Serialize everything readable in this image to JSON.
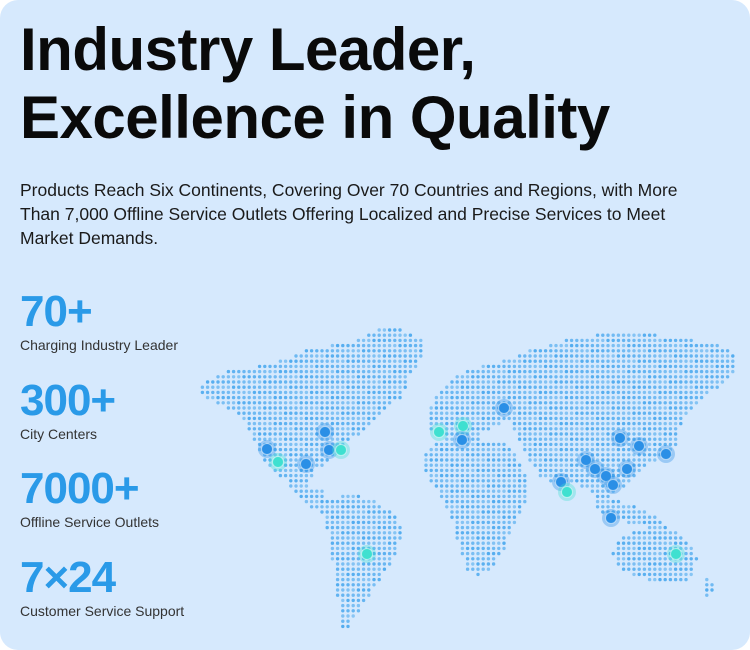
{
  "headline": {
    "line1": "Industry Leader,",
    "line2": "Excellence in Quality"
  },
  "description": "Products Reach Six Continents, Covering Over 70 Countries and Regions, with More Than 7,000 Offline Service Outlets Offering Localized and Precise Services to Meet Market Demands.",
  "stats": [
    {
      "value": "70+",
      "label": "Charging Industry Leader"
    },
    {
      "value": "300+",
      "label": "City Centers"
    },
    {
      "value": "7000+",
      "label": "Offline Service Outlets"
    },
    {
      "value": "7×24",
      "label": "Customer Service Support"
    }
  ],
  "map": {
    "icon": "world-map-dotted",
    "dot_color": "#4aa8ee",
    "marker_color": "#2a8fe6",
    "marker_highlight": "#3fe0d0"
  }
}
